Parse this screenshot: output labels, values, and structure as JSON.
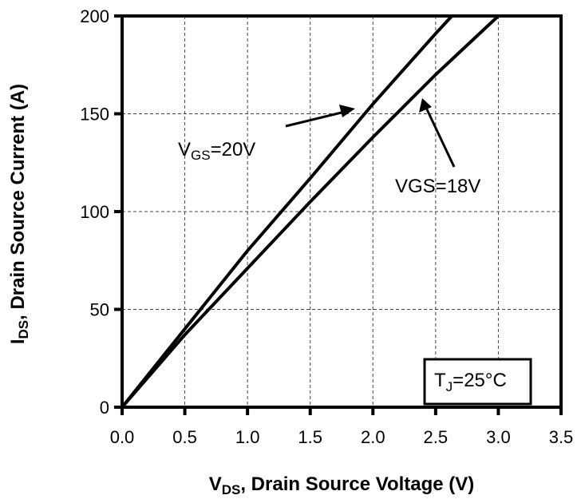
{
  "chart_data": {
    "type": "line",
    "title": "",
    "xlabel": "V_DS, Drain Source Voltage (V)",
    "ylabel": "I_DS, Drain Source Current (A)",
    "xlim": [
      0,
      3.5
    ],
    "ylim": [
      0,
      200
    ],
    "x_ticks": [
      "0.0",
      "0.5",
      "1.0",
      "1.5",
      "2.0",
      "2.5",
      "3.0",
      "3.5"
    ],
    "y_ticks": [
      "0",
      "50",
      "100",
      "150",
      "200"
    ],
    "grid": true,
    "legend": "none (curves labeled by arrow annotations)",
    "series": [
      {
        "name": "VGS=20V",
        "x": [
          0,
          0.5,
          1.0,
          1.5,
          2.0,
          2.5,
          2.63
        ],
        "y": [
          0,
          40,
          80,
          117,
          155,
          191,
          200
        ]
      },
      {
        "name": "VGS=18V",
        "x": [
          0,
          0.5,
          1.0,
          1.5,
          2.0,
          2.5,
          3.0
        ],
        "y": [
          0,
          37,
          71,
          105,
          138,
          170,
          200
        ]
      }
    ],
    "annotations": [
      {
        "text": "VGS=20V",
        "arrow_to": [
          1.9,
          153
        ]
      },
      {
        "text": "VGS=18V",
        "arrow_to": [
          2.38,
          170
        ]
      },
      {
        "text": "TJ=25°C",
        "boxed": true,
        "position": "bottom-right"
      }
    ]
  },
  "labels": {
    "xlabel_main": "V",
    "xlabel_sub": "DS",
    "xlabel_rest": ", Drain Source Voltage (V)",
    "ylabel_main": "I",
    "ylabel_sub": "DS",
    "ylabel_rest": ", Drain  Source Current (A)",
    "ann20_main": "V",
    "ann20_sub": "GS",
    "ann20_rest": "=20V",
    "ann18": "VGS=18V",
    "temp_main": "T",
    "temp_sub": "J",
    "temp_rest": "=25°C"
  }
}
